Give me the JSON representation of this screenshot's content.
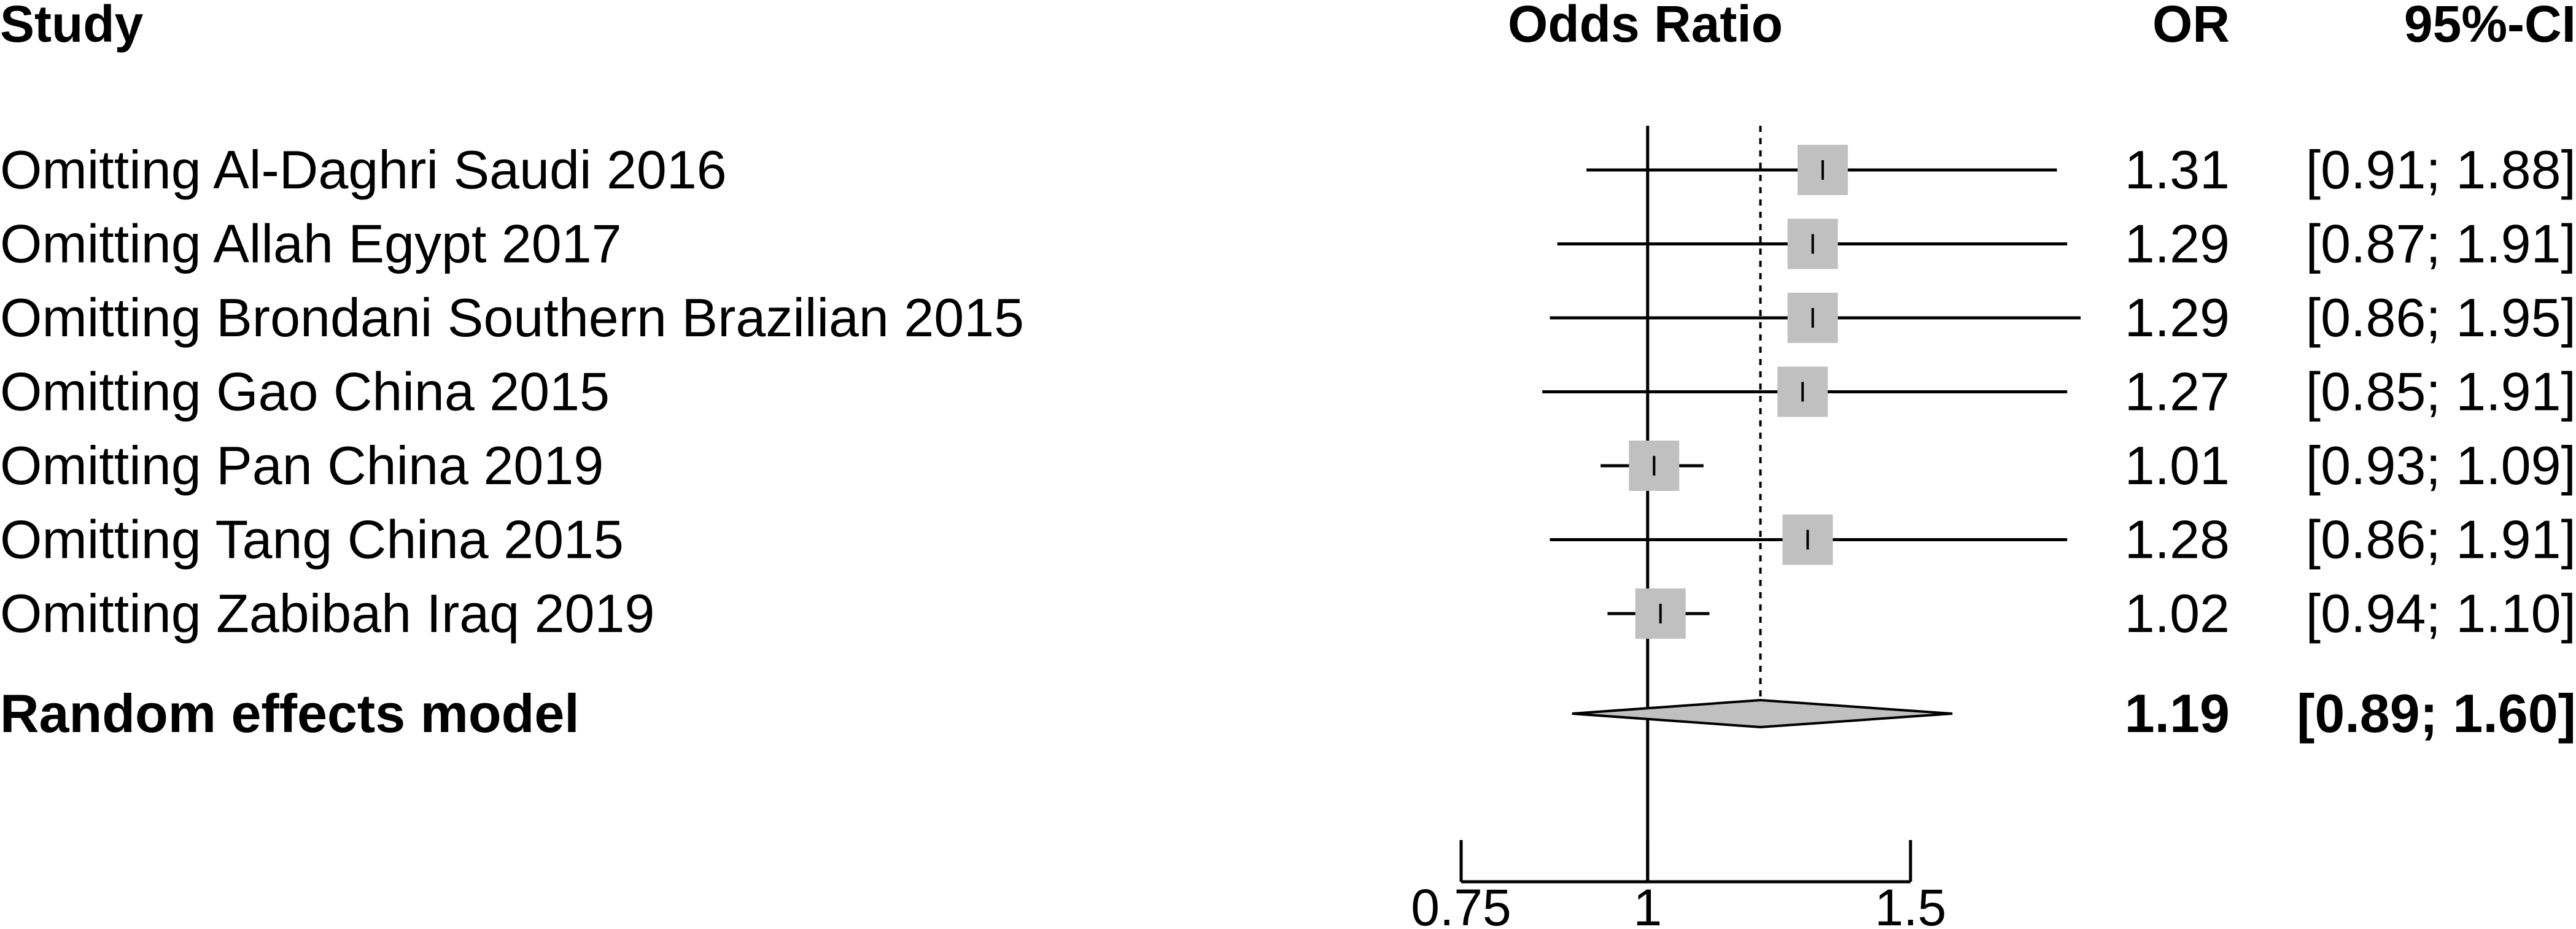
{
  "headers": {
    "study": "Study",
    "effect": "Odds Ratio",
    "or": "OR",
    "ci": "95%-CI"
  },
  "chart_data": {
    "type": "forest",
    "xscale": "log",
    "xlim": [
      0.75,
      1.5
    ],
    "ticks": [
      0.75,
      1,
      1.5
    ],
    "null_line": 1,
    "pooled_line": 1.19,
    "studies": [
      {
        "label": "Omitting Al-Daghri  Saudi 2016",
        "or": 1.31,
        "lower": 0.91,
        "upper": 1.88,
        "or_text": "1.31",
        "ci_text": "[0.91; 1.88]"
      },
      {
        "label": "Omitting Allah Egypt 2017",
        "or": 1.29,
        "lower": 0.87,
        "upper": 1.91,
        "or_text": "1.29",
        "ci_text": "[0.87; 1.91]"
      },
      {
        "label": "Omitting Brondani  Southern Brazilian 2015",
        "or": 1.29,
        "lower": 0.86,
        "upper": 1.95,
        "or_text": "1.29",
        "ci_text": "[0.86; 1.95]"
      },
      {
        "label": "Omitting Gao   China 2015",
        "or": 1.27,
        "lower": 0.85,
        "upper": 1.91,
        "or_text": "1.27",
        "ci_text": "[0.85; 1.91]"
      },
      {
        "label": "Omitting Pan China 2019",
        "or": 1.01,
        "lower": 0.93,
        "upper": 1.09,
        "or_text": "1.01",
        "ci_text": "[0.93; 1.09]"
      },
      {
        "label": "Omitting Tang  China 2015",
        "or": 1.28,
        "lower": 0.86,
        "upper": 1.91,
        "or_text": "1.28",
        "ci_text": "[0.86; 1.91]"
      },
      {
        "label": "Omitting Zabibah  Iraq 2019",
        "or": 1.02,
        "lower": 0.94,
        "upper": 1.1,
        "or_text": "1.02",
        "ci_text": "[0.94; 1.10]"
      }
    ],
    "pooled": {
      "label": "Random effects model",
      "or": 1.19,
      "lower": 0.89,
      "upper": 1.6,
      "or_text": "1.19",
      "ci_text": "[0.89; 1.60]"
    },
    "colors": {
      "box": "#c0c0c0",
      "diamond": "#c0c0c0",
      "line": "#000000"
    }
  }
}
